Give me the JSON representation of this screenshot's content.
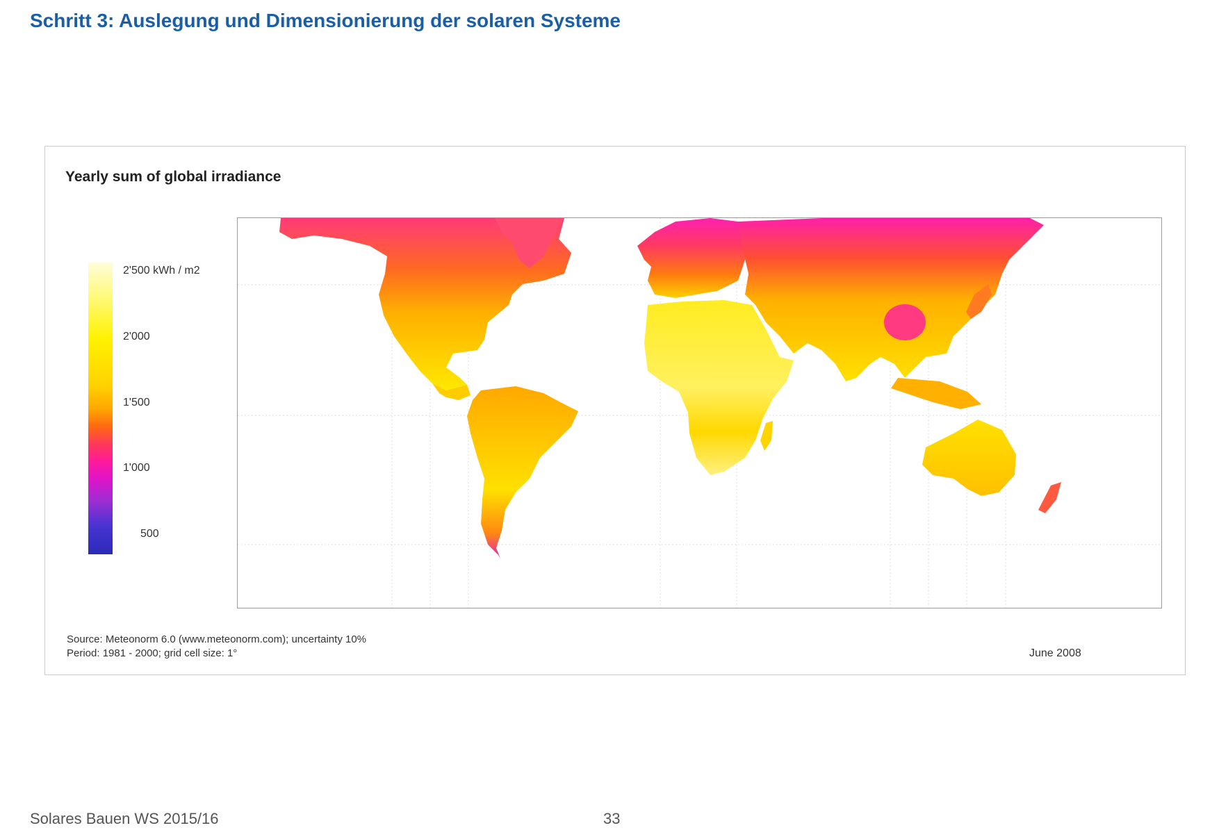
{
  "slide": {
    "title": "Schritt 3: Auslegung und Dimensionierung der solaren Systeme"
  },
  "map": {
    "title": "Yearly sum of global irradiance",
    "legend": {
      "labels": [
        "2'500 kWh / m2",
        "2'000",
        "1'500",
        "1'000",
        "500"
      ],
      "colors": [
        "#fefcd8",
        "#fff200",
        "#ffa800",
        "#ff3a58",
        "#e014c8",
        "#2a2ab8"
      ]
    },
    "source": "Source: Meteonorm 6.0 (www.meteonorm.com); uncertainty 10%",
    "period": "Period: 1981 - 2000; grid cell size: 1°",
    "date": "June 2008"
  },
  "footer": {
    "course": "Solares Bauen WS 2015/16",
    "page": "33"
  }
}
